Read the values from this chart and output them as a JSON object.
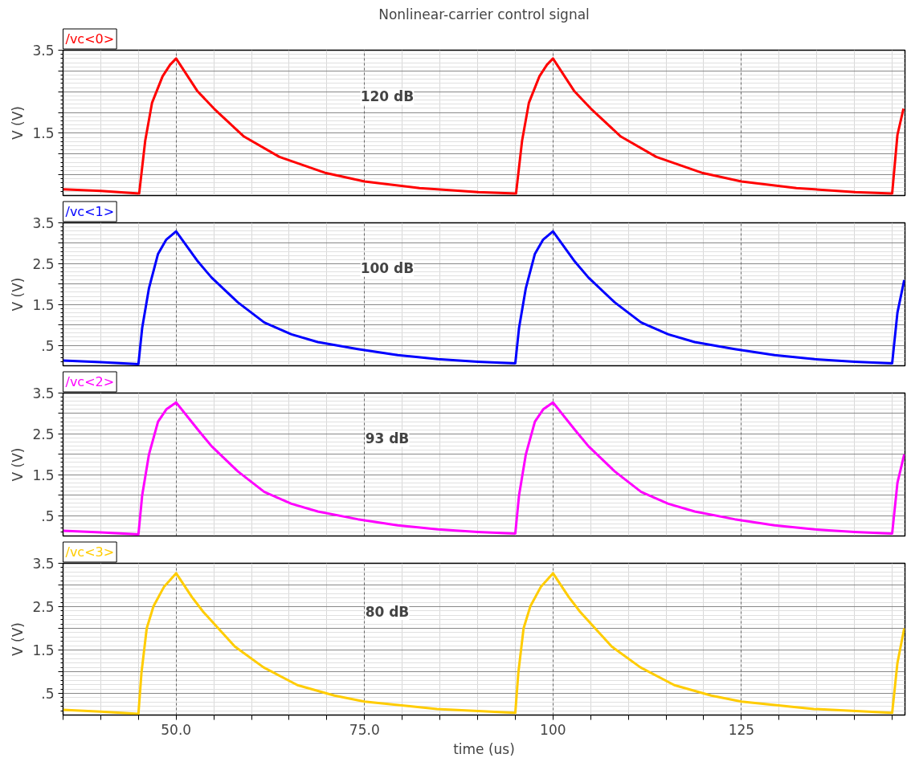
{
  "chart_data": [
    {
      "type": "line",
      "title": "Nonlinear-carrier control signal",
      "ylabel": "V (V)",
      "annotations": [
        "120 dB"
      ],
      "xlim": [
        35,
        146.7
      ],
      "ylim": [
        0,
        3.5
      ],
      "grid": true,
      "tick_labels": "y",
      "xticks": [
        {
          "value": 35,
          "label": null
        },
        {
          "value": 40,
          "label": null
        },
        {
          "value": 45,
          "label": null
        },
        {
          "value": 50,
          "label": null
        },
        {
          "value": 55,
          "label": null
        },
        {
          "value": 60,
          "label": null
        },
        {
          "value": 65,
          "label": null
        },
        {
          "value": 70,
          "label": null
        },
        {
          "value": 75,
          "label": null
        },
        {
          "value": 80,
          "label": null
        },
        {
          "value": 85,
          "label": null
        },
        {
          "value": 90,
          "label": null
        },
        {
          "value": 95,
          "label": null
        },
        {
          "value": 100,
          "label": null
        },
        {
          "value": 105,
          "label": null
        },
        {
          "value": 110,
          "label": null
        },
        {
          "value": 115,
          "label": null
        },
        {
          "value": 120,
          "label": null
        },
        {
          "value": 125,
          "label": null
        },
        {
          "value": 130,
          "label": null
        },
        {
          "value": 135,
          "label": null
        },
        {
          "value": 140,
          "label": null
        },
        {
          "value": 145,
          "label": null
        }
      ],
      "yticks": [
        {
          "value": 0.5,
          "label": null
        },
        {
          "value": 1.0,
          "label": null
        },
        {
          "value": 1.5,
          "label": "1.5"
        },
        {
          "value": 2.0,
          "label": null
        },
        {
          "value": 2.5,
          "label": null
        },
        {
          "value": 3.0,
          "label": null
        },
        {
          "value": 3.5,
          "label": "3.5"
        }
      ],
      "x": [
        35,
        40,
        45.1,
        45.9,
        46.8,
        48.2,
        49.2,
        50.0,
        52.8,
        55.2,
        59.0,
        63.7,
        69.9,
        75.0,
        82.3,
        90.1,
        95.1,
        95.9,
        96.8,
        98.2,
        99.2,
        100.0,
        102.8,
        105.2,
        109.0,
        113.7,
        119.9,
        125.0,
        132.3,
        140.1,
        145.0,
        145.7,
        146.5
      ],
      "series": [
        {
          "name": "/vc<0>",
          "color": "#ff0000",
          "values": [
            0.15,
            0.11,
            0.05,
            1.32,
            2.23,
            2.87,
            3.15,
            3.3,
            2.52,
            2.06,
            1.42,
            0.93,
            0.54,
            0.34,
            0.18,
            0.08,
            0.05,
            1.32,
            2.23,
            2.87,
            3.15,
            3.3,
            2.52,
            2.06,
            1.42,
            0.93,
            0.54,
            0.34,
            0.18,
            0.08,
            0.05,
            1.46,
            2.09
          ]
        }
      ]
    },
    {
      "type": "line",
      "ylabel": "V (V)",
      "annotations": [
        "100 dB"
      ],
      "xlim": [
        35,
        146.7
      ],
      "ylim": [
        0,
        3.5
      ],
      "grid": true,
      "tick_labels": "y",
      "xticks": [
        {
          "value": 35,
          "label": null
        },
        {
          "value": 40,
          "label": null
        },
        {
          "value": 45,
          "label": null
        },
        {
          "value": 50,
          "label": null
        },
        {
          "value": 55,
          "label": null
        },
        {
          "value": 60,
          "label": null
        },
        {
          "value": 65,
          "label": null
        },
        {
          "value": 70,
          "label": null
        },
        {
          "value": 75,
          "label": null
        },
        {
          "value": 80,
          "label": null
        },
        {
          "value": 85,
          "label": null
        },
        {
          "value": 90,
          "label": null
        },
        {
          "value": 95,
          "label": null
        },
        {
          "value": 100,
          "label": null
        },
        {
          "value": 105,
          "label": null
        },
        {
          "value": 110,
          "label": null
        },
        {
          "value": 115,
          "label": null
        },
        {
          "value": 120,
          "label": null
        },
        {
          "value": 125,
          "label": null
        },
        {
          "value": 130,
          "label": null
        },
        {
          "value": 135,
          "label": null
        },
        {
          "value": 140,
          "label": null
        },
        {
          "value": 145,
          "label": null
        }
      ],
      "yticks": [
        {
          "value": 0.5,
          "label": ".5"
        },
        {
          "value": 1.0,
          "label": null
        },
        {
          "value": 1.5,
          "label": "1.5"
        },
        {
          "value": 2.0,
          "label": null
        },
        {
          "value": 2.5,
          "label": "2.5"
        },
        {
          "value": 3.0,
          "label": null
        },
        {
          "value": 3.5,
          "label": "3.5"
        }
      ],
      "x": [
        35,
        40,
        45.0,
        45.5,
        46.4,
        47.6,
        48.7,
        50.0,
        52.9,
        54.7,
        58.2,
        61.7,
        65.3,
        68.8,
        74.1,
        79.4,
        84.7,
        90.0,
        95.0,
        95.5,
        96.4,
        97.6,
        98.7,
        100.0,
        102.9,
        104.7,
        108.2,
        111.7,
        115.3,
        118.8,
        124.1,
        129.4,
        134.7,
        140.0,
        145.0,
        145.7,
        146.6
      ],
      "series": [
        {
          "name": "/vc<1>",
          "color": "#0000ff",
          "values": [
            0.13,
            0.09,
            0.04,
            0.93,
            1.9,
            2.74,
            3.09,
            3.29,
            2.55,
            2.16,
            1.55,
            1.06,
            0.77,
            0.58,
            0.41,
            0.26,
            0.16,
            0.1,
            0.06,
            0.93,
            1.9,
            2.74,
            3.09,
            3.29,
            2.55,
            2.16,
            1.55,
            1.06,
            0.77,
            0.58,
            0.41,
            0.26,
            0.16,
            0.1,
            0.06,
            1.3,
            2.1
          ]
        }
      ]
    },
    {
      "type": "line",
      "ylabel": "V (V)",
      "annotations": [
        "93 dB"
      ],
      "xlim": [
        35,
        146.7
      ],
      "ylim": [
        0,
        3.5
      ],
      "grid": true,
      "tick_labels": "y",
      "xticks": [
        {
          "value": 35,
          "label": null
        },
        {
          "value": 40,
          "label": null
        },
        {
          "value": 45,
          "label": null
        },
        {
          "value": 50,
          "label": null
        },
        {
          "value": 55,
          "label": null
        },
        {
          "value": 60,
          "label": null
        },
        {
          "value": 65,
          "label": null
        },
        {
          "value": 70,
          "label": null
        },
        {
          "value": 75,
          "label": null
        },
        {
          "value": 80,
          "label": null
        },
        {
          "value": 85,
          "label": null
        },
        {
          "value": 90,
          "label": null
        },
        {
          "value": 95,
          "label": null
        },
        {
          "value": 100,
          "label": null
        },
        {
          "value": 105,
          "label": null
        },
        {
          "value": 110,
          "label": null
        },
        {
          "value": 115,
          "label": null
        },
        {
          "value": 120,
          "label": null
        },
        {
          "value": 125,
          "label": null
        },
        {
          "value": 130,
          "label": null
        },
        {
          "value": 135,
          "label": null
        },
        {
          "value": 140,
          "label": null
        },
        {
          "value": 145,
          "label": null
        }
      ],
      "yticks": [
        {
          "value": 0.5,
          "label": ".5"
        },
        {
          "value": 1.0,
          "label": null
        },
        {
          "value": 1.5,
          "label": "1.5"
        },
        {
          "value": 2.0,
          "label": null
        },
        {
          "value": 2.5,
          "label": "2.5"
        },
        {
          "value": 3.0,
          "label": null
        },
        {
          "value": 3.5,
          "label": "3.5"
        }
      ],
      "x": [
        35,
        40,
        45.0,
        45.5,
        46.4,
        47.6,
        48.7,
        50.0,
        52.9,
        54.7,
        58.2,
        61.7,
        65.3,
        68.8,
        74.1,
        79.4,
        84.7,
        90.0,
        95.0,
        95.5,
        96.4,
        97.6,
        98.7,
        100.0,
        102.9,
        104.7,
        108.2,
        111.7,
        115.3,
        118.8,
        124.1,
        129.4,
        134.7,
        140.0,
        145.0,
        145.7,
        146.6
      ],
      "series": [
        {
          "name": "/vc<2>",
          "color": "#ff00ff",
          "values": [
            0.13,
            0.09,
            0.04,
            1.0,
            2.0,
            2.8,
            3.1,
            3.27,
            2.6,
            2.2,
            1.58,
            1.08,
            0.79,
            0.6,
            0.41,
            0.26,
            0.16,
            0.1,
            0.06,
            1.0,
            2.0,
            2.8,
            3.1,
            3.27,
            2.6,
            2.2,
            1.58,
            1.08,
            0.79,
            0.6,
            0.41,
            0.26,
            0.16,
            0.1,
            0.06,
            1.3,
            2.0
          ]
        }
      ]
    },
    {
      "type": "line",
      "xlabel": "time (us)",
      "ylabel": "V (V)",
      "annotations": [
        "80 dB"
      ],
      "xlim": [
        35,
        146.7
      ],
      "ylim": [
        0,
        3.5
      ],
      "grid": true,
      "xticks": [
        {
          "value": 35,
          "label": null
        },
        {
          "value": 40,
          "label": null
        },
        {
          "value": 45,
          "label": null
        },
        {
          "value": 50,
          "label": "50.0"
        },
        {
          "value": 55,
          "label": null
        },
        {
          "value": 60,
          "label": null
        },
        {
          "value": 65,
          "label": null
        },
        {
          "value": 70,
          "label": null
        },
        {
          "value": 75,
          "label": "75.0"
        },
        {
          "value": 80,
          "label": null
        },
        {
          "value": 85,
          "label": null
        },
        {
          "value": 90,
          "label": null
        },
        {
          "value": 95,
          "label": null
        },
        {
          "value": 100,
          "label": "100"
        },
        {
          "value": 105,
          "label": null
        },
        {
          "value": 110,
          "label": null
        },
        {
          "value": 115,
          "label": null
        },
        {
          "value": 120,
          "label": null
        },
        {
          "value": 125,
          "label": "125"
        },
        {
          "value": 130,
          "label": null
        },
        {
          "value": 135,
          "label": null
        },
        {
          "value": 140,
          "label": null
        },
        {
          "value": 145,
          "label": null
        }
      ],
      "yticks": [
        {
          "value": 0.5,
          "label": ".5"
        },
        {
          "value": 1.0,
          "label": null
        },
        {
          "value": 1.5,
          "label": "1.5"
        },
        {
          "value": 2.0,
          "label": null
        },
        {
          "value": 2.5,
          "label": "2.5"
        },
        {
          "value": 3.0,
          "label": null
        },
        {
          "value": 3.5,
          "label": "3.5"
        }
      ],
      "x": [
        35,
        40,
        45.0,
        45.4,
        46.1,
        47.0,
        48.4,
        50.0,
        52.1,
        53.6,
        57.8,
        61.6,
        66.1,
        71.0,
        75.0,
        84.6,
        95.0,
        95.4,
        96.1,
        97.0,
        98.4,
        100.0,
        102.1,
        103.6,
        107.8,
        111.6,
        116.1,
        121.0,
        125.0,
        134.6,
        145.0,
        145.7,
        146.6
      ],
      "series": [
        {
          "name": "/vc<3>",
          "color": "#ffcc00",
          "values": [
            0.12,
            0.08,
            0.03,
            0.97,
            2.0,
            2.51,
            2.96,
            3.27,
            2.72,
            2.38,
            1.58,
            1.1,
            0.69,
            0.45,
            0.31,
            0.14,
            0.05,
            0.97,
            2.0,
            2.51,
            2.96,
            3.27,
            2.72,
            2.38,
            1.58,
            1.1,
            0.69,
            0.45,
            0.31,
            0.14,
            0.05,
            1.2,
            2.0
          ]
        }
      ]
    }
  ]
}
